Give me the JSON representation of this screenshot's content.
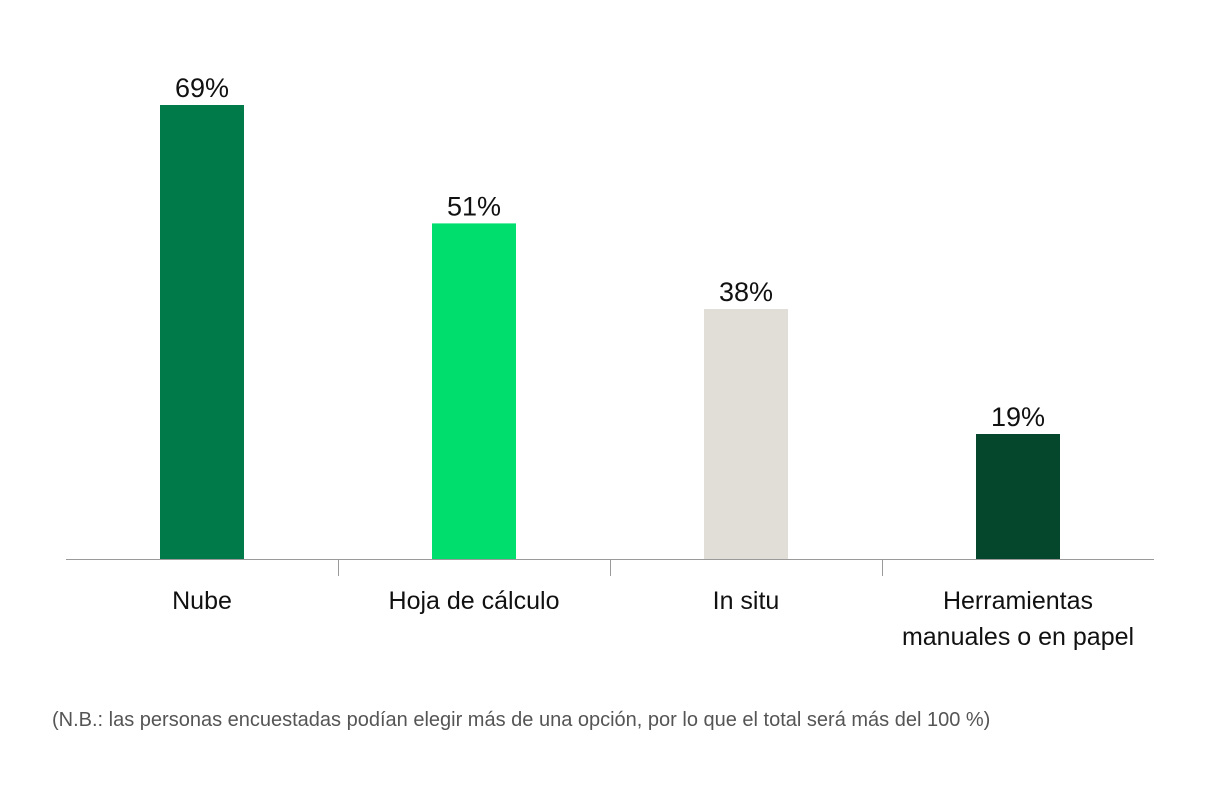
{
  "chart_data": {
    "type": "bar",
    "categories": [
      [
        "Nube"
      ],
      [
        "Hoja de cálculo"
      ],
      [
        "In situ"
      ],
      [
        "Herramientas",
        "manuales o en papel"
      ]
    ],
    "values": [
      69,
      51,
      38,
      19
    ],
    "value_labels": [
      "69%",
      "51%",
      "38%",
      "19%"
    ],
    "colors": [
      "#007A48",
      "#00DE6E",
      "#E1DED7",
      "#05472C"
    ],
    "title": "",
    "xlabel": "",
    "ylabel": "",
    "ylim": [
      0,
      69
    ],
    "grid": false,
    "legend": "none"
  },
  "footnote": "(N.B.: las personas encuestadas podían elegir más de una opción, por lo que el total será más del 100 %)"
}
